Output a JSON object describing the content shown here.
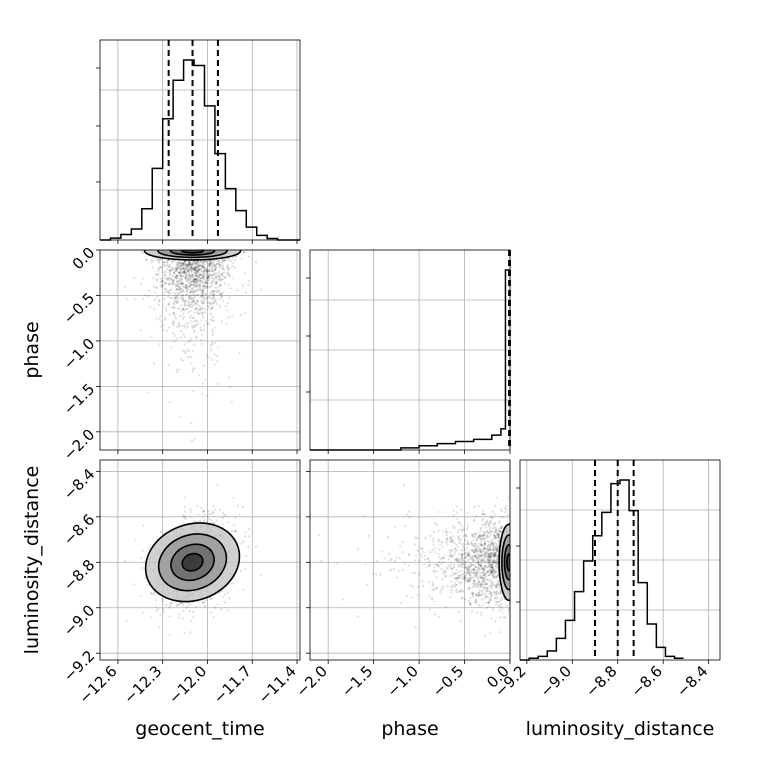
{
  "colors": {
    "frame": "#000000",
    "grid": "#b0b0b0",
    "sample": "#000000",
    "median_line": "#000000"
  },
  "chart_data": [
    {
      "type": "histogram",
      "panel": "geocent_time marginal",
      "xlabel": "",
      "xlim": [
        -12.72,
        -11.38
      ],
      "xticks": [
        "−12.6",
        "−12.3",
        "−12.0",
        "−11.7",
        "−11.4"
      ],
      "bins": [
        -12.72,
        -12.65,
        -12.58,
        -12.51,
        -12.44,
        -12.37,
        -12.3,
        -12.23,
        -12.16,
        -12.09,
        -12.02,
        -11.95,
        -11.88,
        -11.81,
        -11.74,
        -11.67,
        -11.6,
        -11.53,
        -11.46,
        -11.38
      ],
      "counts": [
        0.0,
        0.01,
        0.03,
        0.06,
        0.17,
        0.39,
        0.66,
        0.87,
        0.98,
        0.95,
        0.73,
        0.47,
        0.28,
        0.16,
        0.07,
        0.025,
        0.008,
        0.0,
        0.0
      ],
      "quantiles": [
        -12.26,
        -12.1,
        -11.93
      ]
    },
    {
      "type": "scatter",
      "panel": "phase vs geocent_time",
      "ylabel": "phase",
      "xlim": [
        -12.72,
        -11.38
      ],
      "ylim": [
        -2.2,
        0.0
      ],
      "yticks": [
        "−2.0",
        "−1.5",
        "−1.0",
        "−0.5",
        "0.0"
      ],
      "points_description": "dense sample cloud concentrated at phase near 0, spreading down to about -1.3, sparse tail to -2.0",
      "contour_center": [
        -12.1,
        -0.01
      ]
    },
    {
      "type": "histogram",
      "panel": "phase marginal",
      "xlim": [
        -2.2,
        0.0
      ],
      "bins": [
        -2.2,
        -2.0,
        -1.8,
        -1.6,
        -1.4,
        -1.2,
        -1.0,
        -0.8,
        -0.6,
        -0.4,
        -0.2,
        -0.1,
        -0.05,
        0.0
      ],
      "counts": [
        0.0,
        0.0,
        0.0,
        0.0,
        0.0,
        0.01,
        0.02,
        0.03,
        0.04,
        0.05,
        0.07,
        0.1,
        0.85
      ],
      "quantiles": [
        -0.01,
        -0.003,
        -0.001
      ]
    },
    {
      "type": "scatter",
      "panel": "luminosity_distance vs geocent_time",
      "ylabel": "luminosity_distance",
      "xlabel": "geocent_time",
      "xlim": [
        -12.72,
        -11.38
      ],
      "ylim": [
        -9.23,
        -8.35
      ],
      "xticks": [
        "−12.6",
        "−12.3",
        "−12.0",
        "−11.7",
        "−11.4"
      ],
      "yticks": [
        "−9.2",
        "−9.0",
        "−8.8",
        "−8.6",
        "−8.4"
      ],
      "contour_center": [
        -12.1,
        -8.8
      ]
    },
    {
      "type": "scatter",
      "panel": "luminosity_distance vs phase",
      "xlabel": "phase",
      "xlim": [
        -2.2,
        0.0
      ],
      "ylim": [
        -9.23,
        -8.35
      ],
      "xticks": [
        "−2.0",
        "−1.5",
        "−1.0",
        "−0.5",
        "0.0"
      ],
      "contour_center": [
        -0.01,
        -8.8
      ]
    },
    {
      "type": "histogram",
      "panel": "luminosity_distance marginal",
      "xlabel": "luminosity_distance",
      "xlim": [
        -9.23,
        -8.35
      ],
      "xticks": [
        "−9.2",
        "−9.0",
        "−8.8",
        "−8.6",
        "−8.4"
      ],
      "bins": [
        -9.23,
        -9.19,
        -9.15,
        -9.11,
        -9.07,
        -9.03,
        -8.99,
        -8.95,
        -8.91,
        -8.87,
        -8.83,
        -8.79,
        -8.75,
        -8.71,
        -8.67,
        -8.63,
        -8.59,
        -8.55,
        -8.51
      ],
      "counts": [
        0.0,
        0.01,
        0.02,
        0.05,
        0.12,
        0.22,
        0.38,
        0.55,
        0.69,
        0.82,
        0.98,
        1.0,
        0.83,
        0.43,
        0.2,
        0.07,
        0.02,
        0.01
      ],
      "quantiles": [
        -8.9,
        -8.8,
        -8.73
      ]
    }
  ]
}
